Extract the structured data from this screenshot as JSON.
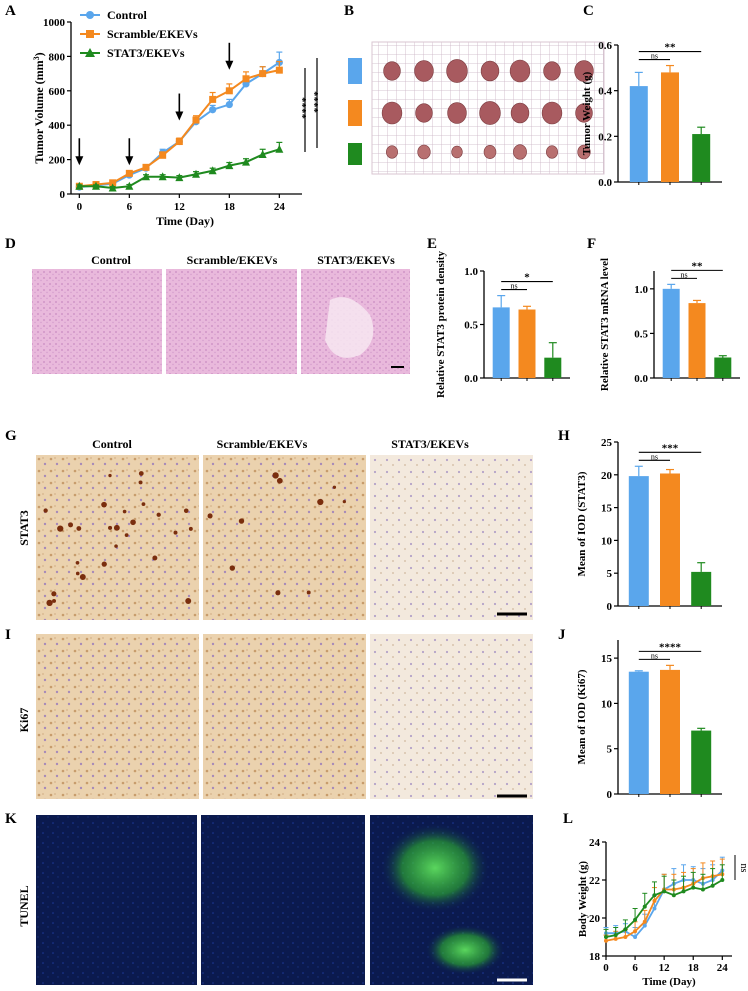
{
  "figure": {
    "panels": [
      "A",
      "B",
      "C",
      "D",
      "E",
      "F",
      "G",
      "H",
      "I",
      "J",
      "K",
      "L"
    ],
    "group_names": [
      "Control",
      "Scramble/EKEVs",
      "STAT3/EKEVs"
    ],
    "row_labels": {
      "stat3": "STAT3",
      "ki67": "Ki67",
      "tunel": "TUNEL"
    }
  },
  "colors": {
    "control": "#5aa6ec",
    "scramble": "#f4891f",
    "stat3": "#1f8a1f",
    "he_bg": "#e9b9dc",
    "ihc_bg": "#efe0c8",
    "tunel_bg": "#0b1a4e"
  },
  "chart_data": [
    {
      "panel": "A",
      "type": "line",
      "title": "",
      "xlabel": "Time (Day)",
      "ylabel": "Tumor Volume (mm3)",
      "xlim": [
        -1,
        26
      ],
      "ylim": [
        0,
        1000
      ],
      "xticks": [
        0,
        6,
        12,
        18,
        24
      ],
      "yticks": [
        0,
        200,
        400,
        600,
        800,
        1000
      ],
      "x": [
        0,
        2,
        4,
        6,
        8,
        10,
        12,
        14,
        16,
        18,
        20,
        22,
        24
      ],
      "series": [
        {
          "name": "Control",
          "key": "control",
          "marker": "circle",
          "values": [
            40,
            50,
            60,
            110,
            150,
            240,
            305,
            420,
            490,
            520,
            640,
            700,
            765
          ],
          "errors": [
            8,
            10,
            10,
            15,
            15,
            20,
            20,
            25,
            25,
            30,
            35,
            40,
            60
          ]
        },
        {
          "name": "Scramble/EKEVs",
          "key": "scramble",
          "marker": "square",
          "values": [
            45,
            55,
            65,
            120,
            155,
            225,
            305,
            430,
            550,
            600,
            670,
            700,
            720
          ],
          "errors": [
            8,
            10,
            10,
            15,
            15,
            20,
            20,
            25,
            40,
            40,
            40,
            40,
            50
          ]
        },
        {
          "name": "STAT3/EKEVs",
          "key": "stat3",
          "marker": "triangle",
          "values": [
            45,
            45,
            35,
            45,
            100,
            100,
            95,
            115,
            135,
            165,
            185,
            230,
            260
          ],
          "errors": [
            8,
            8,
            8,
            10,
            12,
            12,
            12,
            15,
            15,
            18,
            20,
            30,
            40
          ]
        }
      ],
      "arrows_at_days": [
        0,
        6,
        12,
        18
      ],
      "significance": [
        "****",
        "****"
      ]
    },
    {
      "panel": "C",
      "type": "bar",
      "title": "",
      "xlabel": "",
      "ylabel": "Tumor Weight (g)",
      "ylim": [
        0,
        0.6
      ],
      "yticks": [
        0.0,
        0.2,
        0.4,
        0.6
      ],
      "categories": [
        "Control",
        "Scramble/EKEVs",
        "STAT3/EKEVs"
      ],
      "values": [
        0.42,
        0.48,
        0.21
      ],
      "errors": [
        0.06,
        0.03,
        0.03
      ],
      "significance": [
        {
          "label": "ns"
        },
        {
          "label": "**"
        }
      ]
    },
    {
      "panel": "E",
      "type": "bar",
      "title": "",
      "xlabel": "",
      "ylabel": "Relative STAT3 protein density",
      "ylim": [
        0,
        1.0
      ],
      "yticks": [
        0.0,
        0.5,
        1.0
      ],
      "categories": [
        "Control",
        "Scramble/EKEVs",
        "STAT3/EKEVs"
      ],
      "values": [
        0.66,
        0.64,
        0.19
      ],
      "errors": [
        0.11,
        0.03,
        0.14
      ],
      "significance": [
        {
          "label": "ns"
        },
        {
          "label": "*"
        }
      ]
    },
    {
      "panel": "F",
      "type": "bar",
      "title": "",
      "xlabel": "",
      "ylabel": "Relative STAT3 mRNA level",
      "ylim": [
        0,
        1.2
      ],
      "yticks": [
        0.0,
        0.5,
        1.0
      ],
      "categories": [
        "Control",
        "Scramble/EKEVs",
        "STAT3/EKEVs"
      ],
      "values": [
        1.0,
        0.84,
        0.23
      ],
      "errors": [
        0.05,
        0.03,
        0.02
      ],
      "significance": [
        {
          "label": "ns"
        },
        {
          "label": "**"
        }
      ]
    },
    {
      "panel": "H",
      "type": "bar",
      "title": "",
      "xlabel": "",
      "ylabel": "Mean of IOD (STAT3)",
      "ylim": [
        0,
        25
      ],
      "yticks": [
        0,
        5,
        10,
        15,
        20,
        25
      ],
      "categories": [
        "Control",
        "Scramble/EKEVs",
        "STAT3/EKEVs"
      ],
      "values": [
        19.8,
        20.2,
        5.2
      ],
      "errors": [
        1.5,
        0.6,
        1.4
      ],
      "significance": [
        {
          "label": "ns"
        },
        {
          "label": "***"
        }
      ]
    },
    {
      "panel": "J",
      "type": "bar",
      "title": "",
      "xlabel": "",
      "ylabel": "Mean of IOD (Ki67)",
      "ylim": [
        0,
        17
      ],
      "yticks": [
        0,
        5,
        10,
        15
      ],
      "categories": [
        "Control",
        "Scramble/EKEVs",
        "STAT3/EKEVs"
      ],
      "values": [
        13.5,
        13.7,
        7.0
      ],
      "errors": [
        0.1,
        0.5,
        0.25
      ],
      "significance": [
        {
          "label": "ns"
        },
        {
          "label": "****"
        }
      ]
    },
    {
      "panel": "L",
      "type": "line",
      "title": "",
      "xlabel": "Time (Day)",
      "ylabel": "Body Weight (g)",
      "xlim": [
        0,
        26
      ],
      "ylim": [
        18,
        24
      ],
      "xticks": [
        0,
        6,
        12,
        18,
        24
      ],
      "yticks": [
        18,
        20,
        22,
        24
      ],
      "x": [
        0,
        2,
        4,
        6,
        8,
        10,
        12,
        14,
        16,
        18,
        20,
        22,
        24
      ],
      "series": [
        {
          "key": "control",
          "values": [
            19.2,
            19.2,
            19.3,
            19.0,
            19.6,
            20.5,
            21.5,
            21.8,
            22.0,
            22.0,
            21.8,
            22.0,
            22.5
          ],
          "errors": [
            0.3,
            0.4,
            0.4,
            0.5,
            0.6,
            0.7,
            0.8,
            0.8,
            0.8,
            0.7,
            0.8,
            0.8,
            0.7
          ]
        },
        {
          "key": "scramble",
          "values": [
            18.8,
            18.9,
            19.0,
            19.3,
            19.8,
            20.9,
            21.5,
            21.5,
            21.6,
            21.8,
            22.1,
            22.2,
            22.3
          ],
          "errors": [
            0.3,
            0.4,
            0.4,
            0.5,
            0.6,
            0.7,
            0.8,
            0.8,
            0.8,
            0.8,
            0.8,
            0.8,
            0.8
          ]
        },
        {
          "key": "stat3",
          "values": [
            19.0,
            19.1,
            19.4,
            19.9,
            20.6,
            21.2,
            21.4,
            21.2,
            21.4,
            21.6,
            21.5,
            21.7,
            22.0
          ],
          "errors": [
            0.4,
            0.4,
            0.5,
            0.6,
            0.7,
            0.7,
            0.8,
            0.8,
            0.8,
            0.8,
            0.8,
            0.9,
            0.8
          ]
        }
      ],
      "significance": [
        "ns"
      ]
    }
  ]
}
